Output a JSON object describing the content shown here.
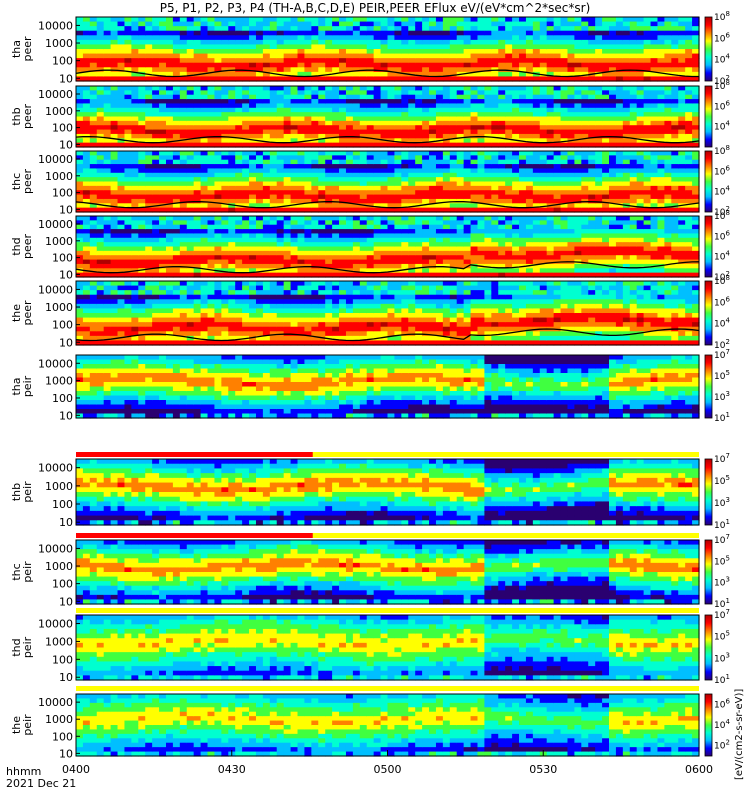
{
  "title": "P5, P1, P2, P3, P4 (TH-A,B,C,D,E) PEIR,PEER EFlux eV/(eV*cm^2*sec*sr)",
  "x_axis": {
    "ticks": [
      "0400",
      "0430",
      "0500",
      "0530",
      "0600"
    ],
    "label_line1": "hhmm",
    "label_line2": "2021 Dec 21"
  },
  "colorbar_label": "[eV/(cm2-s-sr-eV)]",
  "colors": {
    "colormap": [
      "#2a0070",
      "#0000ff",
      "#00bfff",
      "#00ffd0",
      "#40ff40",
      "#ffff00",
      "#ff8000",
      "#ff0000",
      "#b00000"
    ]
  },
  "chart_data": [
    {
      "type": "heatmap",
      "ylabel": [
        "tha",
        "peer"
      ],
      "yscale": "log",
      "ylim": [
        7,
        30000
      ],
      "yticks": [
        "10",
        "100",
        "1000",
        "10000"
      ],
      "xlim": [
        "0400",
        "0600"
      ],
      "colorbar_ticks": [
        "10^2",
        "10^4",
        "10^6",
        "10^8"
      ],
      "colorbar_range": [
        100,
        100000000
      ],
      "black_trace": true
    },
    {
      "type": "heatmap",
      "ylabel": [
        "thb",
        "peer"
      ],
      "yscale": "log",
      "ylim": [
        7,
        30000
      ],
      "yticks": [
        "10",
        "100",
        "1000",
        "10000"
      ],
      "xlim": [
        "0400",
        "0600"
      ],
      "colorbar_ticks": [
        "10^4",
        "10^6",
        "10^8"
      ],
      "colorbar_range": [
        100,
        100000000
      ],
      "black_trace": true
    },
    {
      "type": "heatmap",
      "ylabel": [
        "thc",
        "peer"
      ],
      "yscale": "log",
      "ylim": [
        7,
        30000
      ],
      "yticks": [
        "10",
        "100",
        "1000",
        "10000"
      ],
      "xlim": [
        "0400",
        "0600"
      ],
      "colorbar_ticks": [
        "10^2",
        "10^4",
        "10^6",
        "10^8"
      ],
      "colorbar_range": [
        100,
        100000000
      ],
      "black_trace": true
    },
    {
      "type": "heatmap",
      "ylabel": [
        "thd",
        "peer"
      ],
      "yscale": "log",
      "ylim": [
        7,
        30000
      ],
      "yticks": [
        "10",
        "100",
        "1000",
        "10000"
      ],
      "xlim": [
        "0400",
        "0600"
      ],
      "colorbar_ticks": [
        "10^2",
        "10^4",
        "10^6",
        "10^8"
      ],
      "colorbar_range": [
        100,
        100000000
      ],
      "black_trace": true
    },
    {
      "type": "heatmap",
      "ylabel": [
        "the",
        "peer"
      ],
      "yscale": "log",
      "ylim": [
        7,
        30000
      ],
      "yticks": [
        "10",
        "100",
        "1000",
        "10000"
      ],
      "xlim": [
        "0400",
        "0600"
      ],
      "colorbar_ticks": [
        "10^2",
        "10^4",
        "10^6",
        "10^8"
      ],
      "colorbar_range": [
        100,
        100000000
      ],
      "black_trace": true
    },
    {
      "type": "heatmap",
      "ylabel": [
        "tha",
        "peir"
      ],
      "yscale": "log",
      "ylim": [
        7,
        30000
      ],
      "yticks": [
        "10",
        "100",
        "1000",
        "10000"
      ],
      "xlim": [
        "0400",
        "0600"
      ],
      "colorbar_ticks": [
        "10^1",
        "10^3",
        "10^5",
        "10^7"
      ],
      "colorbar_range": [
        10,
        10000000
      ],
      "black_trace": false
    },
    {
      "type": "heatmap",
      "ylabel": [
        "thb",
        "peir"
      ],
      "yscale": "log",
      "ylim": [
        7,
        30000
      ],
      "yticks": [
        "10",
        "100",
        "1000",
        "10000"
      ],
      "xlim": [
        "0400",
        "0600"
      ],
      "colorbar_ticks": [
        "10^1",
        "10^3",
        "10^5",
        "10^7"
      ],
      "colorbar_range": [
        10,
        10000000
      ],
      "black_trace": false
    },
    {
      "type": "heatmap",
      "ylabel": [
        "thc",
        "peir"
      ],
      "yscale": "log",
      "ylim": [
        7,
        30000
      ],
      "yticks": [
        "10",
        "100",
        "1000",
        "10000"
      ],
      "xlim": [
        "0400",
        "0600"
      ],
      "colorbar_ticks": [
        "10^1",
        "10^3",
        "10^5",
        "10^7"
      ],
      "colorbar_range": [
        10,
        10000000
      ],
      "black_trace": false
    },
    {
      "type": "heatmap",
      "ylabel": [
        "thd",
        "peir"
      ],
      "yscale": "log",
      "ylim": [
        7,
        30000
      ],
      "yticks": [
        "10",
        "100",
        "1000",
        "10000"
      ],
      "xlim": [
        "0400",
        "0600"
      ],
      "colorbar_ticks": [
        "10^1",
        "10^3",
        "10^5",
        "10^7"
      ],
      "colorbar_range": [
        10,
        10000000
      ],
      "black_trace": false
    },
    {
      "type": "heatmap",
      "ylabel": [
        "the",
        "peir"
      ],
      "yscale": "log",
      "ylim": [
        7,
        30000
      ],
      "yticks": [
        "10",
        "100",
        "1000",
        "10000"
      ],
      "xlim": [
        "0400",
        "0600"
      ],
      "colorbar_ticks": [
        "10^2",
        "10^4",
        "10^6"
      ],
      "colorbar_range": [
        10,
        10000000
      ],
      "black_trace": false
    }
  ]
}
